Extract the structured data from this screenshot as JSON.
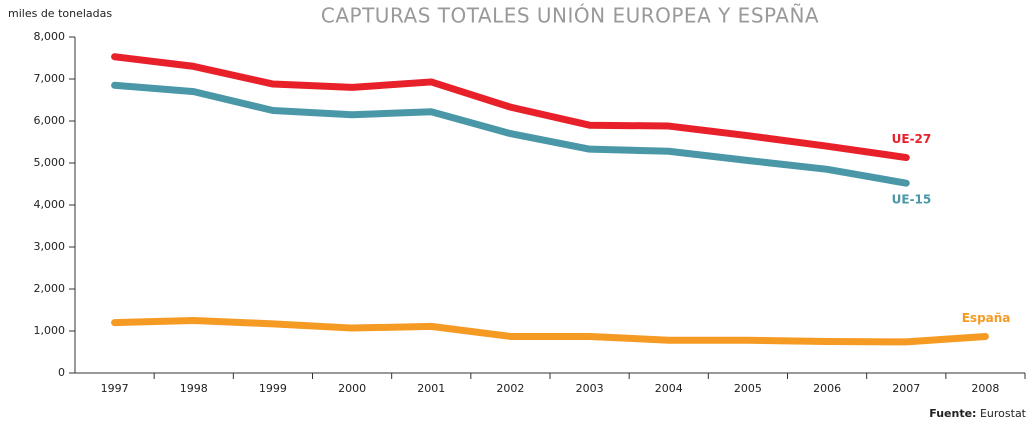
{
  "chart_data": {
    "type": "line",
    "title": "CAPTURAS TOTALES UNIÓN EUROPEA Y ESPAÑA",
    "y_axis_label": "miles de toneladas",
    "source_label": "Fuente:",
    "source": "Eurostat",
    "categories": [
      "1997",
      "1998",
      "1999",
      "2000",
      "2001",
      "2002",
      "2003",
      "2004",
      "2005",
      "2006",
      "2007",
      "2008"
    ],
    "series": [
      {
        "name": "UE-27",
        "color": "#e8202a",
        "values": [
          7530,
          7300,
          6880,
          6800,
          6930,
          6330,
          5900,
          5880,
          5650,
          5400,
          5130,
          null
        ]
      },
      {
        "name": "UE-15",
        "color": "#4a97a8",
        "values": [
          6850,
          6700,
          6250,
          6150,
          6220,
          5700,
          5330,
          5280,
          5060,
          4850,
          4520,
          null
        ]
      },
      {
        "name": "España",
        "color": "#f59a23",
        "values": [
          1200,
          1250,
          1170,
          1070,
          1110,
          870,
          870,
          780,
          780,
          750,
          740,
          870
        ]
      }
    ],
    "ylim": [
      0,
      8000
    ],
    "yticks": [
      0,
      {
        "value": 1000,
        "label": "1,000"
      },
      {
        "value": 2000,
        "label": "2,000"
      },
      {
        "value": 3000,
        "label": "3,000"
      },
      {
        "value": 4000,
        "label": "4,000"
      },
      {
        "value": 5000,
        "label": "5,000"
      },
      {
        "value": 6000,
        "label": "6,000"
      },
      {
        "value": 7000,
        "label": "7,000"
      },
      {
        "value": 8000,
        "label": "8,000"
      }
    ]
  }
}
